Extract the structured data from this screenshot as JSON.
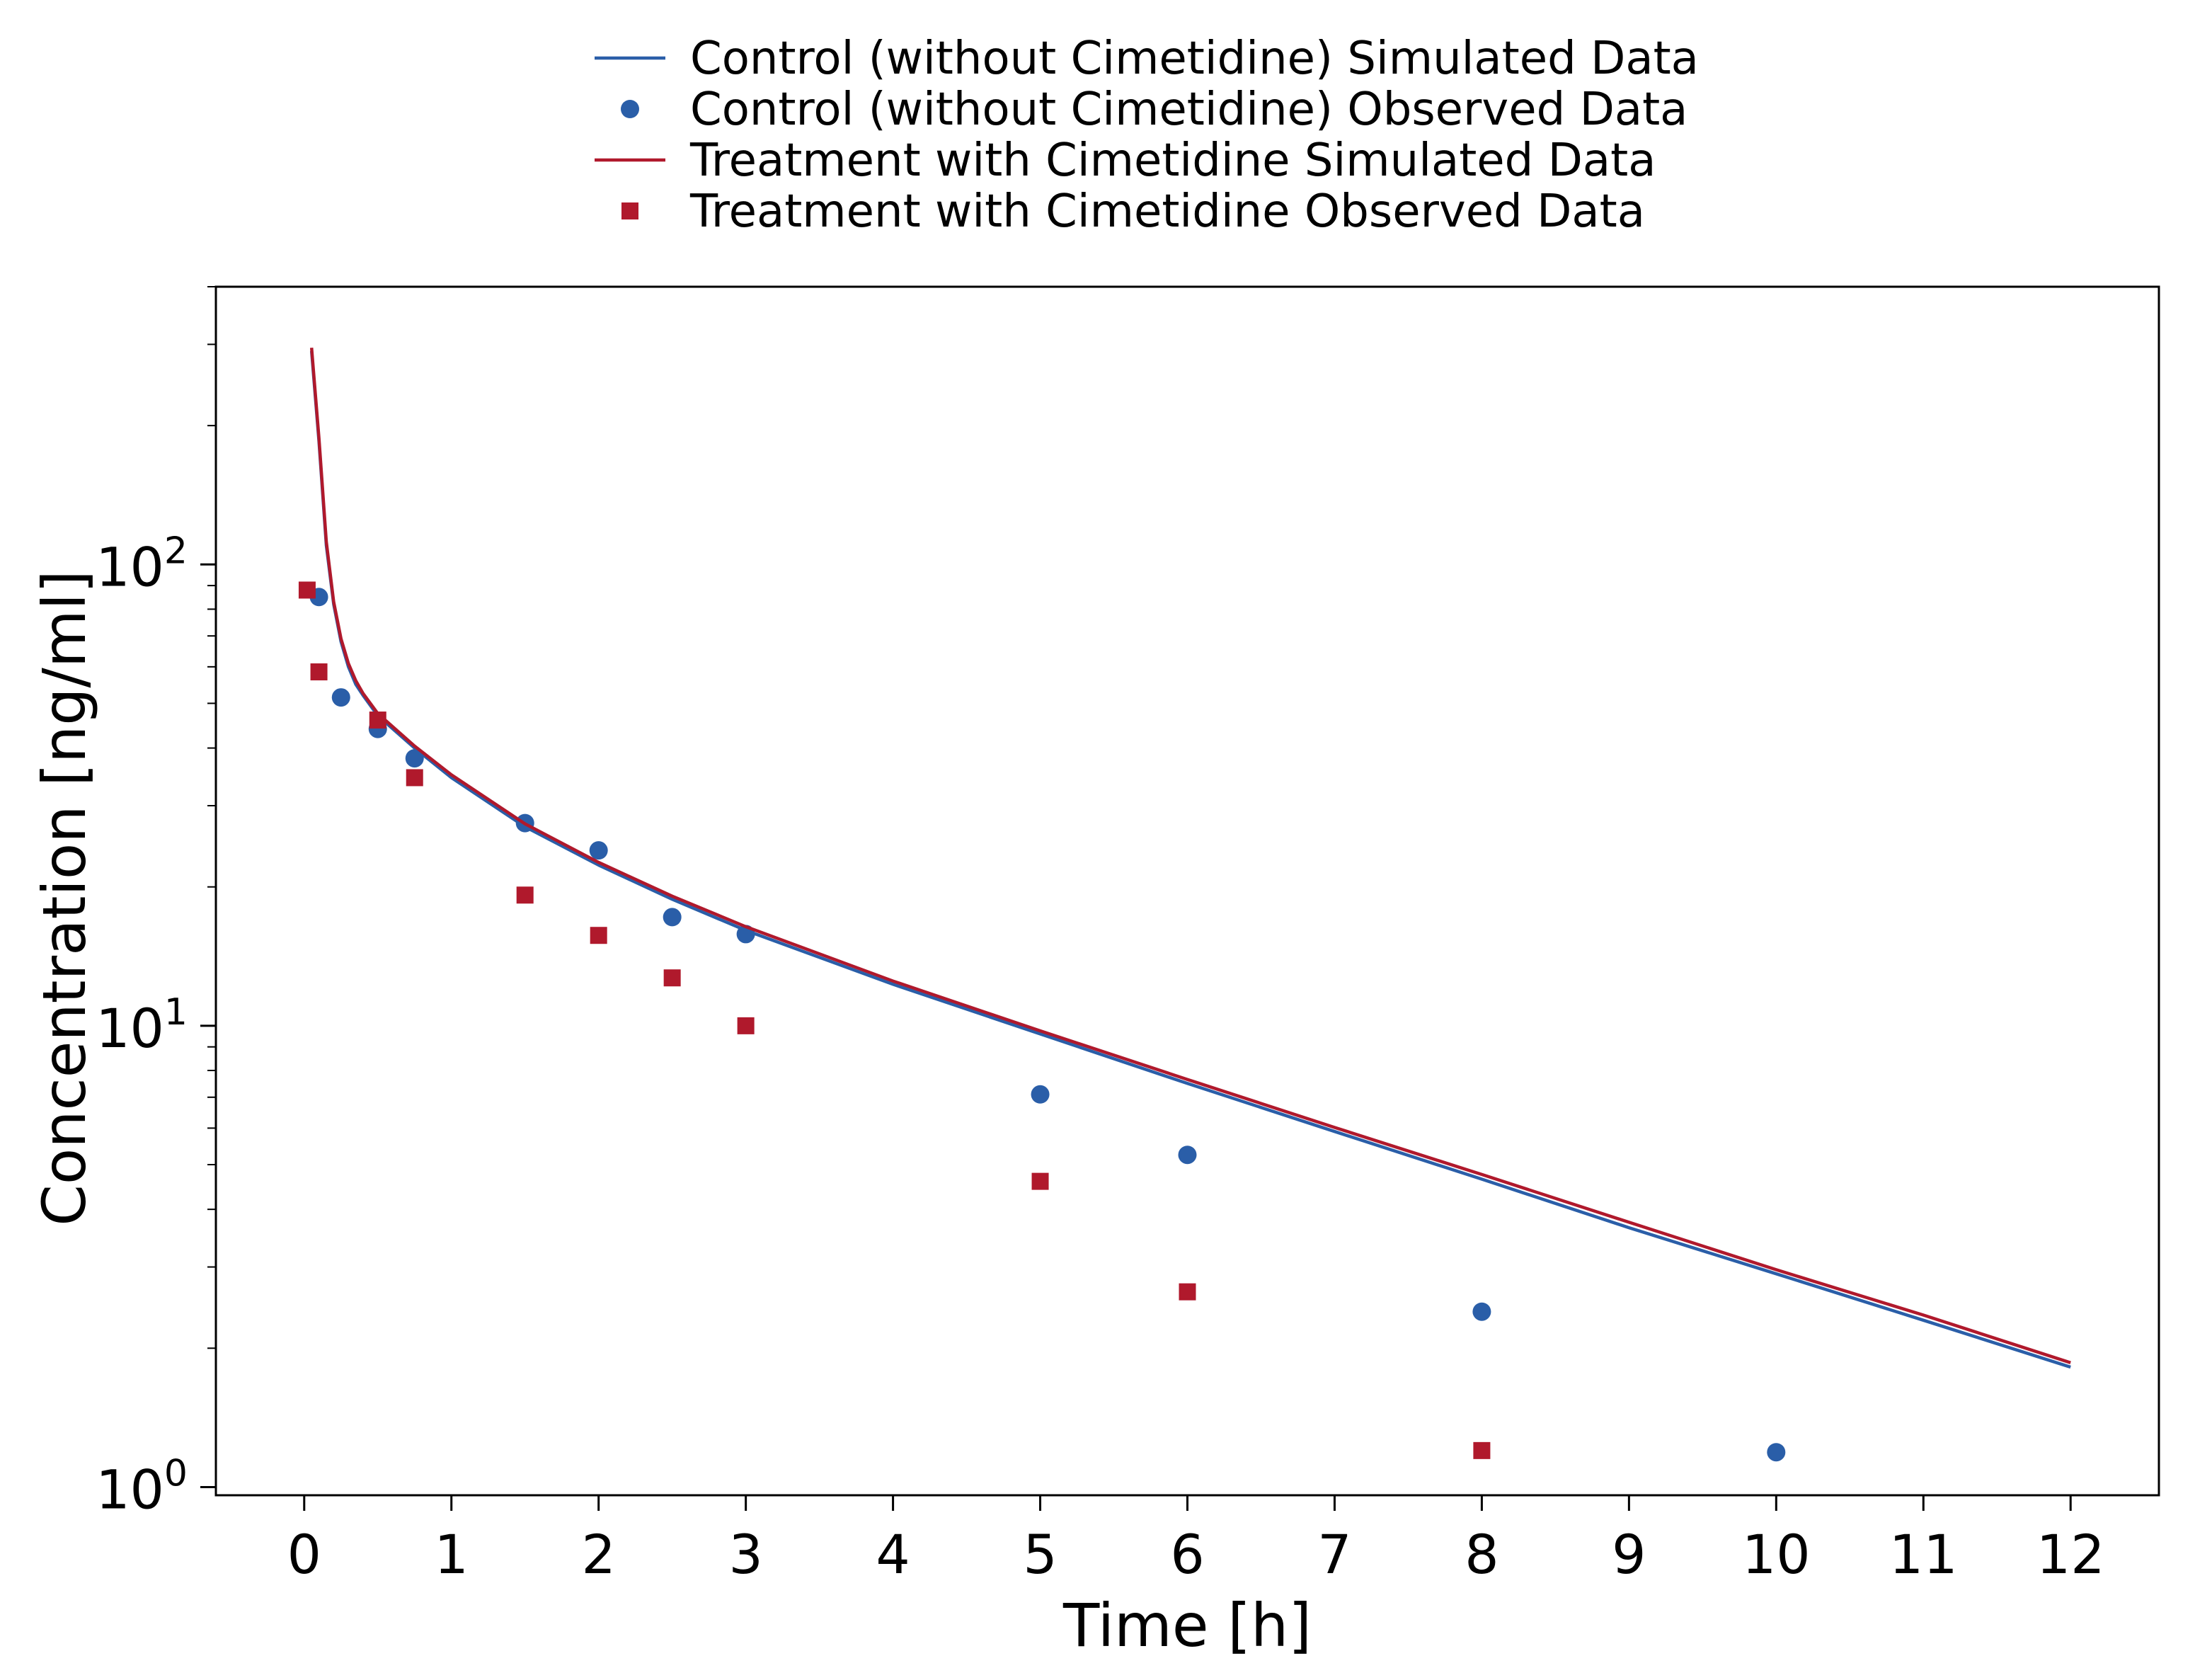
{
  "chart_data": {
    "type": "line",
    "title": "",
    "xlabel": "Time [h]",
    "ylabel": "Concentration [ng/ml]",
    "x_scale": "linear",
    "y_scale": "log",
    "xlim": [
      -0.6,
      12.6
    ],
    "ylim": [
      0.96,
      400
    ],
    "x_ticks": [
      0,
      1,
      2,
      3,
      4,
      5,
      6,
      7,
      8,
      9,
      10,
      11,
      12
    ],
    "x_tick_labels": [
      "0",
      "1",
      "2",
      "3",
      "4",
      "5",
      "6",
      "7",
      "8",
      "9",
      "10",
      "11",
      "12"
    ],
    "y_ticks": [
      1,
      10,
      100
    ],
    "y_tick_labels": [
      {
        "base": "10",
        "exp": "0"
      },
      {
        "base": "10",
        "exp": "1"
      },
      {
        "base": "10",
        "exp": "2"
      }
    ],
    "grid": false,
    "legend_position": "top-center",
    "series": [
      {
        "name": "Control (without Cimetidine) Simulated Data",
        "kind": "line",
        "color": "#2a5ea8",
        "x": [
          0.05,
          0.1,
          0.15,
          0.2,
          0.25,
          0.3,
          0.35,
          0.4,
          0.5,
          0.75,
          1,
          1.5,
          2,
          2.5,
          3,
          4,
          5,
          6,
          7,
          8,
          9,
          10,
          11,
          12
        ],
        "y": [
          290,
          185,
          110,
          82,
          68,
          60,
          55,
          52,
          47,
          40,
          34.5,
          27,
          22.3,
          18.8,
          16.1,
          12.3,
          9.6,
          7.5,
          5.9,
          4.65,
          3.65,
          2.9,
          2.3,
          1.82
        ]
      },
      {
        "name": "Control (without Cimetidine) Observed Data",
        "kind": "scatter",
        "marker": "circle",
        "color": "#2a5ea8",
        "x": [
          0.1,
          0.25,
          0.5,
          0.75,
          1.5,
          2,
          2.5,
          3,
          5,
          6,
          8,
          10
        ],
        "y": [
          85,
          51.5,
          44,
          38,
          27.5,
          24,
          17.2,
          15.8,
          7.1,
          5.25,
          2.4,
          1.19
        ]
      },
      {
        "name": "Treatment with Cimetidine Simulated Data",
        "kind": "line",
        "color": "#b0192c",
        "x": [
          0.05,
          0.1,
          0.15,
          0.2,
          0.25,
          0.3,
          0.35,
          0.4,
          0.5,
          0.75,
          1,
          1.5,
          2,
          2.5,
          3,
          4,
          5,
          6,
          7,
          8,
          9,
          10,
          11,
          12
        ],
        "y": [
          295,
          188,
          112,
          83,
          69,
          61,
          56,
          52.5,
          47.5,
          40.4,
          35,
          27.4,
          22.6,
          19.1,
          16.4,
          12.5,
          9.75,
          7.65,
          6.02,
          4.76,
          3.75,
          2.96,
          2.36,
          1.86
        ]
      },
      {
        "name": "Treatment with Cimetidine Observed Data",
        "kind": "scatter",
        "marker": "square",
        "color": "#b0192c",
        "x": [
          0.02,
          0.1,
          0.5,
          0.75,
          1.5,
          2,
          2.5,
          3,
          5,
          6,
          8
        ],
        "y": [
          88,
          58.5,
          46,
          34.5,
          19.2,
          15.7,
          12.7,
          10,
          4.6,
          2.65,
          1.2
        ]
      }
    ]
  }
}
